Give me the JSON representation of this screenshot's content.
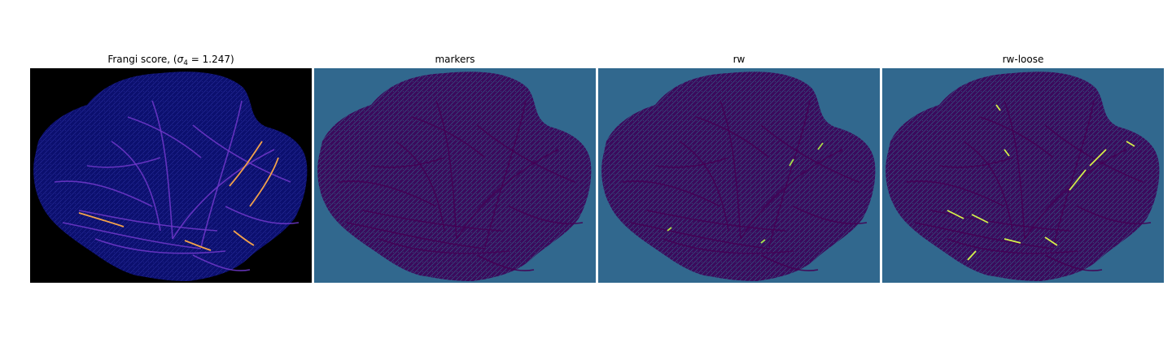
{
  "panels": [
    {
      "title_prefix": "Frangi score, (",
      "title_sigma": "σ",
      "title_sub": "4",
      "title_suffix": " = 1.247)",
      "background": "#000000",
      "blob": "#0b0f6e",
      "vein": "#6b36c7",
      "highlight": "#f3a24a"
    },
    {
      "title": "markers",
      "background": "#31688e",
      "blob": "#3b0a5c",
      "vein": "#440154"
    },
    {
      "title": "rw",
      "background": "#31688e",
      "blob": "#3b0a5c",
      "vein": "#440154",
      "highlight": "#a8e04a"
    },
    {
      "title": "rw-loose",
      "background": "#31688e",
      "blob": "#3b0a5c",
      "vein": "#440154",
      "highlight": "#d4f04a"
    }
  ]
}
